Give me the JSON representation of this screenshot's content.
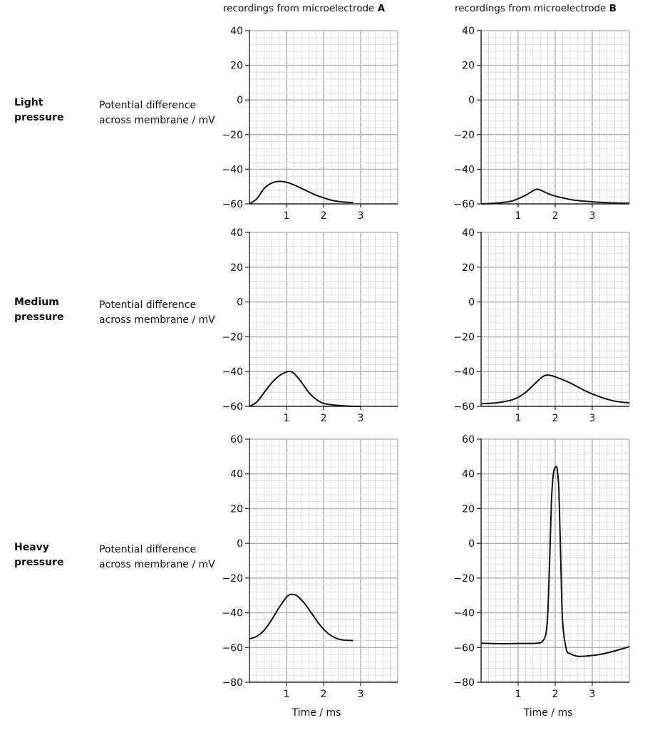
{
  "header": {
    "col_a_prefix": "recordings from microelectrode ",
    "col_a_letter": "A",
    "col_b_prefix": "recordings from microelectrode ",
    "col_b_letter": "B"
  },
  "rows": [
    {
      "label_line1": "Light",
      "label_line2": "pressure",
      "ylabel_line1": "Potential difference",
      "ylabel_line2": "across membrane / mV"
    },
    {
      "label_line1": "Medium",
      "label_line2": "pressure",
      "ylabel_line1": "Potential difference",
      "ylabel_line2": "across membrane / mV"
    },
    {
      "label_line1": "Heavy",
      "label_line2": "pressure",
      "ylabel_line1": "Potential difference",
      "ylabel_line2": "across membrane / mV"
    }
  ],
  "xlabel": "Time / ms",
  "chart_data": [
    {
      "type": "line",
      "id": "light-A",
      "xlim": [
        0,
        4
      ],
      "ylim": [
        -60,
        40
      ],
      "yticks": [
        40,
        20,
        0,
        -20,
        -40,
        -60
      ],
      "xticks": [
        1,
        2,
        3
      ],
      "show_xlabel": false,
      "series": [
        {
          "x": [
            0,
            0.2,
            0.4,
            0.6,
            0.8,
            1.0,
            1.2,
            1.4,
            1.6,
            1.8,
            2.0,
            2.2,
            2.4,
            2.6,
            2.8
          ],
          "y": [
            -60,
            -57,
            -51,
            -48,
            -47,
            -47.5,
            -49,
            -51,
            -53,
            -55,
            -56.5,
            -57.8,
            -58.6,
            -59,
            -59.2
          ]
        }
      ]
    },
    {
      "type": "line",
      "id": "light-B",
      "xlim": [
        0,
        4
      ],
      "ylim": [
        -60,
        40
      ],
      "yticks": [
        40,
        20,
        0,
        -20,
        -40,
        -60
      ],
      "xticks": [
        1,
        2,
        3
      ],
      "show_xlabel": false,
      "series": [
        {
          "x": [
            0,
            0.4,
            0.8,
            1.0,
            1.2,
            1.4,
            1.5,
            1.6,
            1.8,
            2.0,
            2.2,
            2.5,
            3.0,
            3.5,
            4.0
          ],
          "y": [
            -60,
            -59.6,
            -58.5,
            -57,
            -55,
            -52.5,
            -51.5,
            -52,
            -54,
            -55.5,
            -56.5,
            -57.8,
            -58.8,
            -59.4,
            -59.7
          ]
        }
      ]
    },
    {
      "type": "line",
      "id": "medium-A",
      "xlim": [
        0,
        4
      ],
      "ylim": [
        -60,
        40
      ],
      "yticks": [
        40,
        20,
        0,
        -20,
        -40,
        -60
      ],
      "xticks": [
        1,
        2,
        3
      ],
      "show_xlabel": false,
      "series": [
        {
          "x": [
            0,
            0.2,
            0.4,
            0.6,
            0.8,
            1.0,
            1.1,
            1.2,
            1.4,
            1.6,
            1.8,
            2.0,
            2.3,
            2.6,
            2.8,
            3.0
          ],
          "y": [
            -60,
            -57.5,
            -52,
            -46.5,
            -42.5,
            -40.2,
            -40,
            -41,
            -46,
            -52,
            -56,
            -58.3,
            -59.3,
            -59.8,
            -60,
            -60
          ]
        }
      ]
    },
    {
      "type": "line",
      "id": "medium-B",
      "xlim": [
        0,
        4
      ],
      "ylim": [
        -60,
        40
      ],
      "yticks": [
        40,
        20,
        0,
        -20,
        -40,
        -60
      ],
      "xticks": [
        1,
        2,
        3
      ],
      "show_xlabel": false,
      "series": [
        {
          "x": [
            0,
            0.4,
            0.8,
            1.0,
            1.2,
            1.4,
            1.6,
            1.7,
            1.8,
            2.0,
            2.4,
            2.8,
            3.2,
            3.6,
            4.0
          ],
          "y": [
            -58.5,
            -58,
            -56.5,
            -54.8,
            -52,
            -48,
            -44,
            -42.5,
            -42,
            -43,
            -46.5,
            -51,
            -54.5,
            -57,
            -58
          ]
        }
      ]
    },
    {
      "type": "line",
      "id": "heavy-A",
      "xlim": [
        0,
        4
      ],
      "ylim": [
        -80,
        60
      ],
      "yticks": [
        60,
        40,
        20,
        0,
        -20,
        -40,
        -60,
        -80
      ],
      "xticks": [
        1,
        2,
        3
      ],
      "show_xlabel": true,
      "series": [
        {
          "x": [
            0,
            0.2,
            0.4,
            0.6,
            0.8,
            1.0,
            1.1,
            1.2,
            1.3,
            1.5,
            1.7,
            1.9,
            2.1,
            2.3,
            2.5,
            2.8
          ],
          "y": [
            -55,
            -53.5,
            -50,
            -44,
            -37,
            -31,
            -29.5,
            -29.5,
            -30.5,
            -35,
            -41,
            -47,
            -51.5,
            -54.3,
            -55.6,
            -56
          ]
        }
      ]
    },
    {
      "type": "line",
      "id": "heavy-B",
      "xlim": [
        0,
        4
      ],
      "ylim": [
        -80,
        60
      ],
      "yticks": [
        60,
        40,
        20,
        0,
        -20,
        -40,
        -60,
        -80
      ],
      "xticks": [
        1,
        2,
        3
      ],
      "show_xlabel": true,
      "series": [
        {
          "x": [
            0,
            0.5,
            1.0,
            1.5,
            1.65,
            1.75,
            1.8,
            1.85,
            1.9,
            1.95,
            2.0,
            2.05,
            2.1,
            2.15,
            2.2,
            2.3,
            2.4,
            2.6,
            2.8,
            3.2,
            3.6,
            4.0
          ],
          "y": [
            -57.5,
            -57.8,
            -57.7,
            -57.5,
            -56.5,
            -52,
            -40,
            -10,
            25,
            40,
            43.5,
            43,
            30,
            -10,
            -45,
            -61,
            -63.5,
            -65,
            -65,
            -64,
            -62,
            -59.5
          ]
        }
      ]
    }
  ]
}
